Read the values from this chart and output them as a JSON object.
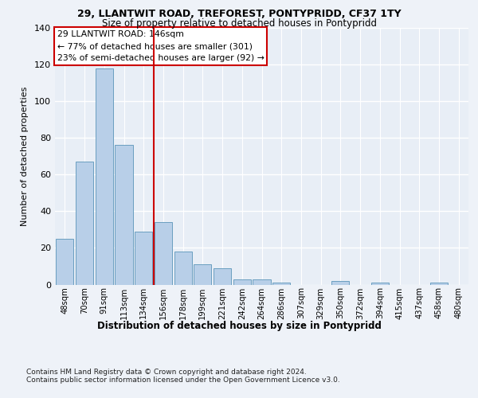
{
  "title1": "29, LLANTWIT ROAD, TREFOREST, PONTYPRIDD, CF37 1TY",
  "title2": "Size of property relative to detached houses in Pontypridd",
  "xlabel": "Distribution of detached houses by size in Pontypridd",
  "ylabel": "Number of detached properties",
  "categories": [
    "48sqm",
    "70sqm",
    "91sqm",
    "113sqm",
    "134sqm",
    "156sqm",
    "178sqm",
    "199sqm",
    "221sqm",
    "242sqm",
    "264sqm",
    "286sqm",
    "307sqm",
    "329sqm",
    "350sqm",
    "372sqm",
    "394sqm",
    "415sqm",
    "437sqm",
    "458sqm",
    "480sqm"
  ],
  "values": [
    25,
    67,
    118,
    76,
    29,
    34,
    18,
    11,
    9,
    3,
    3,
    1,
    0,
    0,
    2,
    0,
    1,
    0,
    0,
    1,
    0
  ],
  "bar_color": "#b8cfe8",
  "bar_edge_color": "#6a9fc0",
  "vline_x": 4.5,
  "vline_color": "#cc0000",
  "annotation_title": "29 LLANTWIT ROAD: 146sqm",
  "annotation_line1": "← 77% of detached houses are smaller (301)",
  "annotation_line2": "23% of semi-detached houses are larger (92) →",
  "annotation_box_color": "#ffffff",
  "annotation_box_edge": "#cc0000",
  "ylim": [
    0,
    140
  ],
  "yticks": [
    0,
    20,
    40,
    60,
    80,
    100,
    120,
    140
  ],
  "background_color": "#e8eef6",
  "grid_color": "#ffffff",
  "footer1": "Contains HM Land Registry data © Crown copyright and database right 2024.",
  "footer2": "Contains public sector information licensed under the Open Government Licence v3.0."
}
